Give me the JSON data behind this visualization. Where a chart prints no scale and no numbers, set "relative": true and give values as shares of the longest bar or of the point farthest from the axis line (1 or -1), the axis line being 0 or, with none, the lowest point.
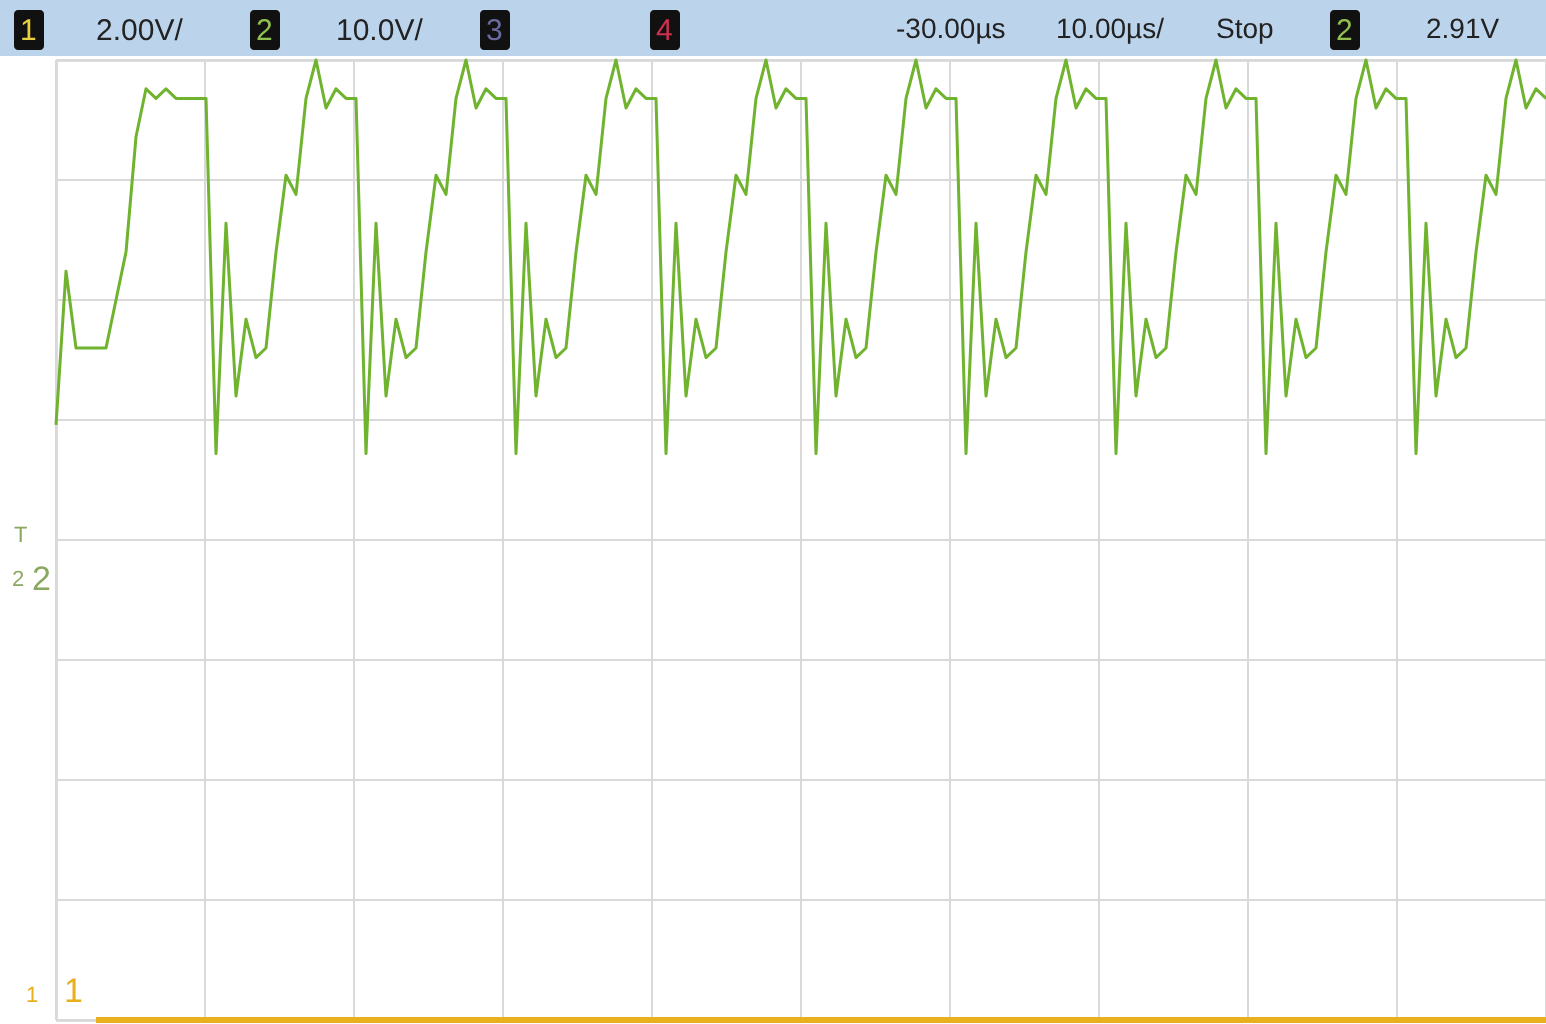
{
  "chart_data": {
    "type": "line",
    "relative": true,
    "grid": true,
    "marker": "none",
    "line_style": "solid",
    "categories": [
      null,
      null,
      null,
      null,
      null,
      null,
      null,
      null,
      null,
      null,
      null,
      null,
      null,
      null,
      null,
      null,
      null,
      null,
      null,
      null,
      null,
      null,
      null,
      null,
      null,
      null,
      null,
      null,
      null,
      null,
      null,
      null,
      null,
      null,
      null,
      null,
      null,
      null,
      null,
      null,
      null,
      null,
      null,
      null,
      null,
      null,
      null,
      null,
      null,
      null,
      null,
      null,
      null,
      null,
      null,
      null,
      null,
      null,
      null,
      null,
      null,
      null,
      null,
      null,
      null,
      null,
      null,
      null,
      null,
      null,
      null,
      null,
      null,
      null,
      null,
      null,
      null,
      null,
      null,
      null,
      null,
      null,
      null,
      null,
      null,
      null,
      null,
      null,
      null,
      null,
      null,
      null,
      null,
      null,
      null,
      null,
      null,
      null,
      null,
      null,
      null,
      null,
      null,
      null,
      null,
      null,
      null,
      null,
      null,
      null,
      null,
      null,
      null,
      null,
      null,
      null,
      null,
      null,
      null,
      null,
      null,
      null,
      null,
      null,
      null,
      null,
      null,
      null,
      null,
      null,
      null,
      null,
      null,
      null,
      null,
      null,
      null,
      null,
      null,
      null,
      null,
      null,
      null,
      null,
      null,
      null,
      null,
      null,
      null,
      null
    ],
    "series": [
      {
        "color": "#6fb32e",
        "values": [
          0.62,
          0.78,
          0.7,
          0.7,
          0.7,
          0.7,
          0.75,
          0.8,
          0.92,
          0.97,
          0.96,
          0.97,
          0.96,
          0.96,
          0.96,
          0.96,
          0.59,
          0.83,
          0.65,
          0.73,
          0.69,
          0.7,
          0.8,
          0.88,
          0.86,
          0.96,
          1,
          0.95,
          0.97,
          0.96,
          0.96,
          0.59,
          0.83,
          0.65,
          0.73,
          0.69,
          0.7,
          0.8,
          0.88,
          0.86,
          0.96,
          1,
          0.95,
          0.97,
          0.96,
          0.96,
          0.59,
          0.83,
          0.65,
          0.73,
          0.69,
          0.7,
          0.8,
          0.88,
          0.86,
          0.96,
          1,
          0.95,
          0.97,
          0.96,
          0.96,
          0.59,
          0.83,
          0.65,
          0.73,
          0.69,
          0.7,
          0.8,
          0.88,
          0.86,
          0.96,
          1,
          0.95,
          0.97,
          0.96,
          0.96,
          0.59,
          0.83,
          0.65,
          0.73,
          0.69,
          0.7,
          0.8,
          0.88,
          0.86,
          0.96,
          1,
          0.95,
          0.97,
          0.96,
          0.96,
          0.59,
          0.83,
          0.65,
          0.73,
          0.69,
          0.7,
          0.8,
          0.88,
          0.86,
          0.96,
          1,
          0.95,
          0.97,
          0.96,
          0.96,
          0.59,
          0.83,
          0.65,
          0.73,
          0.69,
          0.7,
          0.8,
          0.88,
          0.86,
          0.96,
          1,
          0.95,
          0.97,
          0.96,
          0.96,
          0.59,
          0.83,
          0.65,
          0.73,
          0.69,
          0.7,
          0.8,
          0.88,
          0.86,
          0.96,
          1,
          0.95,
          0.97,
          0.96,
          0.96,
          0.59,
          0.83,
          0.65,
          0.73,
          0.69,
          0.7,
          0.8,
          0.88,
          0.86,
          0.96,
          1,
          0.95,
          0.97,
          0.96
        ]
      },
      {
        "color": "#e8b01e",
        "values": [
          null,
          null,
          null,
          null,
          0,
          0,
          0,
          0,
          0,
          0,
          0,
          0,
          0,
          0,
          0,
          0,
          0,
          0,
          0,
          0,
          0,
          0,
          0,
          0,
          0,
          0,
          0,
          0,
          0,
          0,
          0,
          0,
          0,
          0,
          0,
          0,
          0,
          0,
          0,
          0,
          0,
          0,
          0,
          0,
          0,
          0,
          0,
          0,
          0,
          0,
          0,
          0,
          0,
          0,
          0,
          0,
          0,
          0,
          0,
          0,
          0,
          0,
          0,
          0,
          0,
          0,
          0,
          0,
          0,
          0,
          0,
          0,
          0,
          0,
          0,
          0,
          0,
          0,
          0,
          0,
          0,
          0,
          0,
          0,
          0,
          0,
          0,
          0,
          0,
          0,
          0,
          0,
          0,
          0,
          0,
          0,
          0,
          0,
          0,
          0,
          0,
          0,
          0,
          0,
          0,
          0,
          0,
          0,
          0,
          0,
          0,
          0,
          0,
          0,
          0,
          0,
          0,
          0,
          0,
          0,
          0,
          0,
          0,
          0,
          0,
          0,
          0,
          0,
          0,
          0,
          0,
          0,
          0,
          0,
          0,
          0,
          0,
          0,
          0,
          0,
          0,
          0,
          0,
          0,
          0,
          0,
          0,
          0,
          0,
          0
        ]
      }
    ],
    "annotations": [
      "1",
      "2.00V/",
      "2",
      "10.0V/",
      "3",
      "4",
      "-30.00µs",
      "10.00µs/",
      "Stop",
      "2",
      "2.91V",
      "T",
      "2",
      "2",
      "1",
      "1"
    ]
  }
}
